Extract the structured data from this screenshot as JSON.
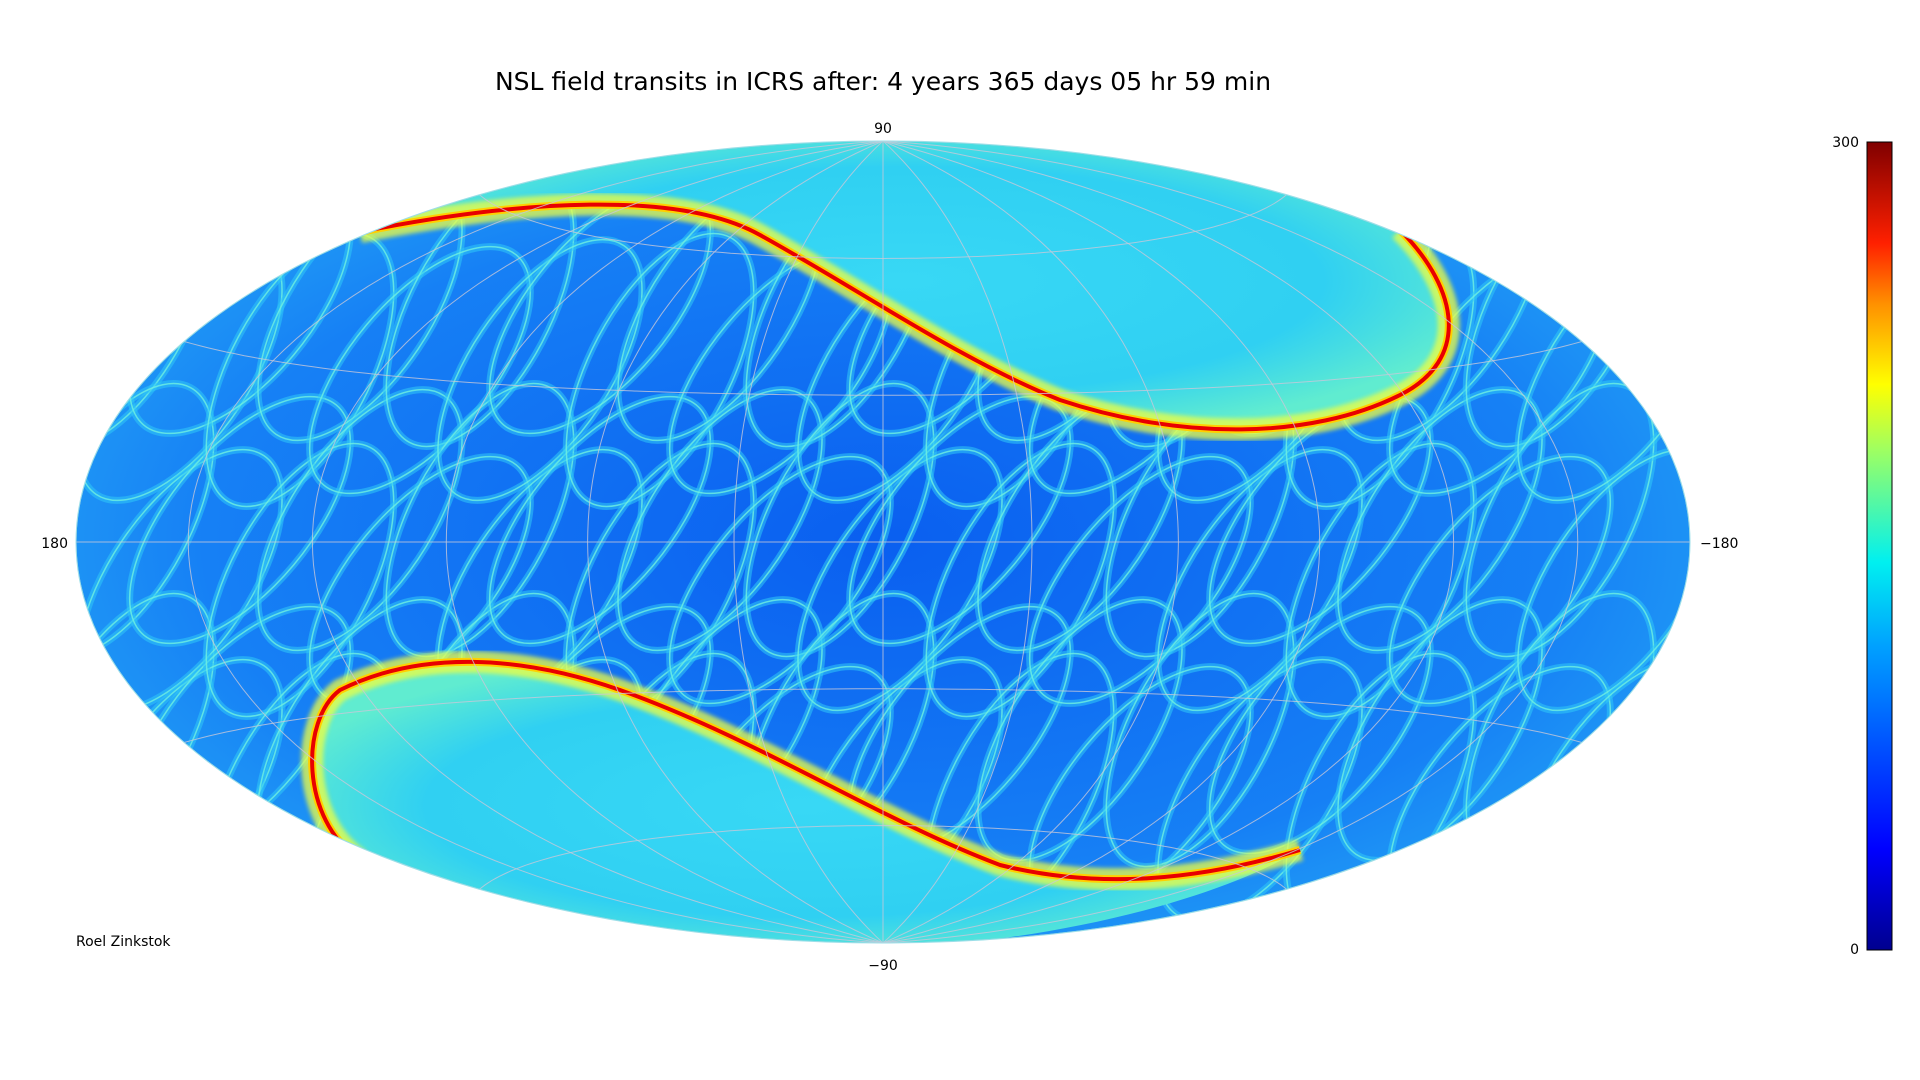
{
  "chart_data": {
    "type": "heatmap",
    "projection": "hammer-aitoff",
    "title": "NSL field transits in ICRS after: 4 years 365 days 05 hr 59 min",
    "tick_labels": {
      "top": "90",
      "bottom": "−90",
      "left": "180",
      "right": "−180"
    },
    "lon_range": [
      180,
      -180
    ],
    "lat_range": [
      -90,
      90
    ],
    "graticule": true,
    "colorbar": {
      "min": 0,
      "max": 300,
      "min_label": "0",
      "max_label": "300",
      "colormap": "jet",
      "position": "right"
    },
    "colors": [
      "#00008f",
      "#0000ff",
      "#0080ff",
      "#00ffff",
      "#80ff80",
      "#ffff00",
      "#ff8000",
      "#ff0000",
      "#800000"
    ],
    "annotation": "Roel Zinkstok"
  }
}
